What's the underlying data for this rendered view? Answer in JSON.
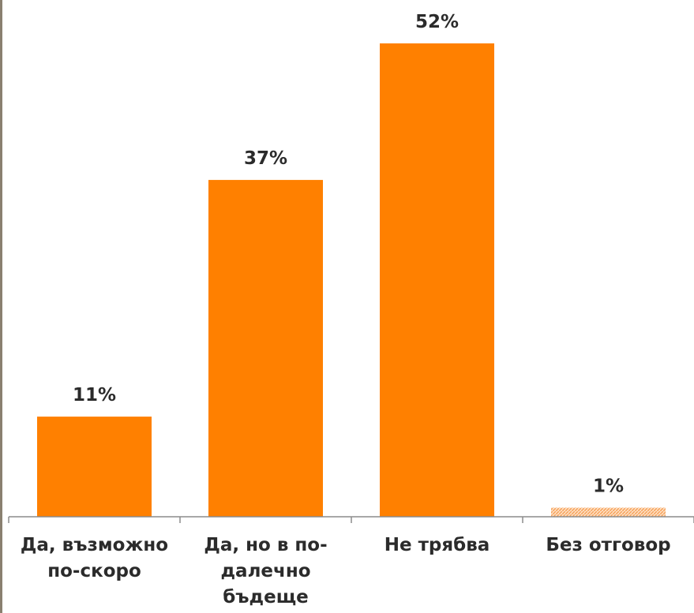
{
  "chart_data": {
    "type": "bar",
    "categories": [
      "Да, възможно по-скоро",
      "Да, но в по-далечно бъдеще",
      "Не трябва",
      "Без отговор"
    ],
    "values": [
      11,
      37,
      52,
      1
    ],
    "data_labels": [
      "11%",
      "37%",
      "52%",
      "1%"
    ],
    "ylim": [
      0,
      52
    ],
    "grid": false,
    "legend": "none",
    "colors": [
      "#ff8000",
      "#ff8000",
      "#ff8000",
      "#f9b47a"
    ],
    "axis_color": "#8c8c8c",
    "text_color": "#2b2b2b"
  }
}
